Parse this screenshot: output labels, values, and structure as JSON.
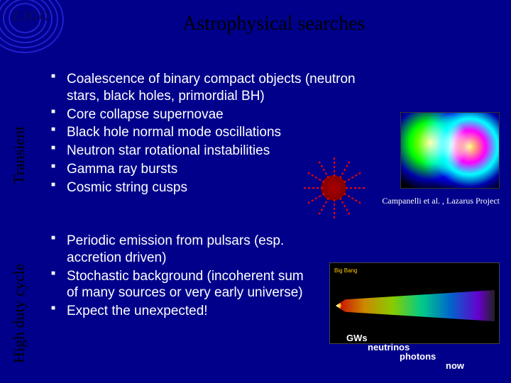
{
  "logo": {
    "text": "LIGO"
  },
  "title": "Astrophysical searches",
  "sidebars": {
    "top": "Transient",
    "bottom": "High duty cycle"
  },
  "lists": {
    "transient": [
      "Coalescence of binary compact objects (neutron stars, black holes, primordial BH)",
      "Core collapse supernovae",
      "Black hole normal mode oscillations",
      "Neutron star rotational instabilities",
      "Gamma ray bursts",
      "Cosmic string cusps"
    ],
    "duty": [
      "Periodic emission from pulsars (esp. accretion driven)",
      "Stochastic background (incoherent sum of many sources or very early universe)",
      "Expect the unexpected!"
    ]
  },
  "caption": "Campanelli et al. , Lazarus Project",
  "timeline": {
    "big_bang": "Big Bang",
    "labels": [
      "GWs",
      "neutrinos",
      "photons",
      "now"
    ]
  },
  "colors": {
    "background": "#00008b",
    "text": "#ffffff",
    "title": "#000000"
  }
}
